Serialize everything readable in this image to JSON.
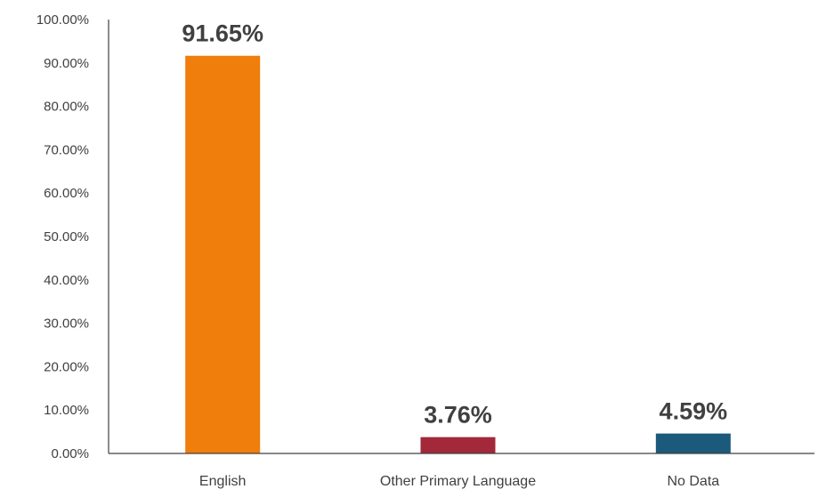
{
  "chart_data": {
    "type": "bar",
    "categories": [
      "English",
      "Other Primary Language",
      "No Data"
    ],
    "values": [
      91.65,
      3.76,
      4.59
    ],
    "data_labels": [
      "91.65%",
      "3.76%",
      "4.59%"
    ],
    "colors": [
      "#EF7E0C",
      "#A2283A",
      "#1C5A7C"
    ],
    "ylim": [
      0,
      100
    ],
    "yticks": [
      0,
      10,
      20,
      30,
      40,
      50,
      60,
      70,
      80,
      90,
      100
    ],
    "ytick_labels": [
      "0.00%",
      "10.00%",
      "20.00%",
      "30.00%",
      "40.00%",
      "50.00%",
      "60.00%",
      "70.00%",
      "80.00%",
      "90.00%",
      "100.00%"
    ],
    "title": "",
    "xlabel": "",
    "ylabel": "",
    "grid": false,
    "legend": false
  }
}
